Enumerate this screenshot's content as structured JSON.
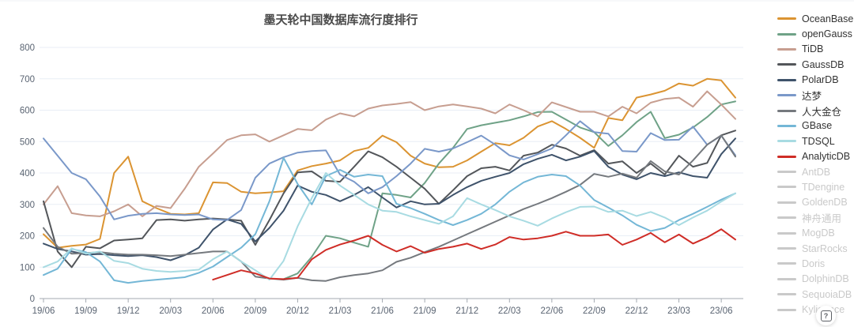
{
  "title": "墨天轮中国数据库流行度排行",
  "help": {
    "glyph": "?"
  },
  "colors": {
    "title": "#4a4a4a",
    "grid": "#e8eef6",
    "axis_line": "#a3a9b1",
    "tick_label": "#5a6472",
    "inactive_legend": "#c9c9c9",
    "background": "#ffffff"
  },
  "legend": {
    "position": "right",
    "items": [
      {
        "label": "OceanBase",
        "color": "#db9432",
        "active": true
      },
      {
        "label": "openGauss",
        "color": "#6fa287",
        "active": true
      },
      {
        "label": "TiDB",
        "color": "#c79e90",
        "active": true
      },
      {
        "label": "GaussDB",
        "color": "#53565a",
        "active": true
      },
      {
        "label": "PolarDB",
        "color": "#3f536b",
        "active": true
      },
      {
        "label": "达梦",
        "color": "#7a98c9",
        "active": true
      },
      {
        "label": "人大金仓",
        "color": "#75797e",
        "active": true
      },
      {
        "label": "GBase",
        "color": "#74b7d6",
        "active": true
      },
      {
        "label": "TDSQL",
        "color": "#a8dbe2",
        "active": true
      },
      {
        "label": "AnalyticDB",
        "color": "#cf2d27",
        "active": true
      },
      {
        "label": "AntDB",
        "color": "#cccccc",
        "active": false
      },
      {
        "label": "TDengine",
        "color": "#cccccc",
        "active": false
      },
      {
        "label": "GoldenDB",
        "color": "#cccccc",
        "active": false
      },
      {
        "label": "神舟通用",
        "color": "#cccccc",
        "active": false
      },
      {
        "label": "MogDB",
        "color": "#cccccc",
        "active": false
      },
      {
        "label": "StarRocks",
        "color": "#cccccc",
        "active": false
      },
      {
        "label": "Doris",
        "color": "#cccccc",
        "active": false
      },
      {
        "label": "DolphinDB",
        "color": "#cccccc",
        "active": false
      },
      {
        "label": "SequoiaDB",
        "color": "#cccccc",
        "active": false
      },
      {
        "label": "Kyligence",
        "color": "#cccccc",
        "active": false
      }
    ]
  },
  "chart_data": {
    "type": "line",
    "title": "墨天轮中国数据库流行度排行",
    "xlabel": "",
    "ylabel": "",
    "ylim": [
      0,
      800
    ],
    "y_tick_step": 100,
    "x_label_every": 3,
    "grid": true,
    "legend_position": "right",
    "x": [
      "19/06",
      "19/07",
      "19/08",
      "19/09",
      "19/10",
      "19/11",
      "19/12",
      "20/01",
      "20/02",
      "20/03",
      "20/04",
      "20/05",
      "20/06",
      "20/07",
      "20/08",
      "20/09",
      "20/10",
      "20/11",
      "20/12",
      "21/01",
      "21/02",
      "21/03",
      "21/04",
      "21/05",
      "21/06",
      "21/07",
      "21/08",
      "21/09",
      "21/10",
      "21/11",
      "21/12",
      "22/01",
      "22/02",
      "22/03",
      "22/04",
      "22/05",
      "22/06",
      "22/07",
      "22/08",
      "22/09",
      "22/10",
      "22/11",
      "22/12",
      "23/01",
      "23/02",
      "23/03",
      "23/04",
      "23/05",
      "23/06",
      "23/07"
    ],
    "series": [
      {
        "name": "OceanBase",
        "color": "#db9432",
        "values": [
          205,
          162,
          168,
          172,
          190,
          400,
          452,
          310,
          288,
          270,
          268,
          272,
          370,
          368,
          340,
          335,
          338,
          342,
          408,
          422,
          430,
          440,
          470,
          480,
          519,
          498,
          455,
          430,
          418,
          420,
          440,
          468,
          495,
          488,
          512,
          548,
          565,
          540,
          512,
          480,
          575,
          568,
          640,
          650,
          662,
          685,
          678,
          700,
          695,
          640
        ]
      },
      {
        "name": "openGauss",
        "color": "#6fa287",
        "values": [
          null,
          null,
          null,
          null,
          null,
          null,
          null,
          null,
          null,
          null,
          null,
          null,
          null,
          null,
          null,
          null,
          null,
          62,
          80,
          133,
          200,
          192,
          178,
          165,
          335,
          330,
          322,
          368,
          430,
          480,
          540,
          552,
          560,
          568,
          580,
          594,
          595,
          570,
          545,
          530,
          486,
          520,
          562,
          595,
          511,
          522,
          545,
          578,
          618,
          628
        ]
      },
      {
        "name": "TiDB",
        "color": "#c79e90",
        "values": [
          300,
          358,
          272,
          265,
          262,
          278,
          300,
          262,
          295,
          288,
          350,
          420,
          462,
          505,
          520,
          523,
          500,
          520,
          540,
          536,
          570,
          590,
          580,
          605,
          615,
          620,
          626,
          600,
          612,
          618,
          612,
          605,
          590,
          618,
          600,
          580,
          625,
          610,
          595,
          595,
          580,
          611,
          590,
          624,
          636,
          640,
          611,
          660,
          618,
          572
        ]
      },
      {
        "name": "GaussDB",
        "color": "#53565a",
        "values": [
          310,
          150,
          100,
          165,
          160,
          185,
          188,
          192,
          250,
          252,
          248,
          252,
          255,
          252,
          248,
          171,
          250,
          335,
          402,
          405,
          375,
          372,
          420,
          469,
          450,
          420,
          385,
          350,
          302,
          345,
          390,
          415,
          420,
          408,
          455,
          465,
          490,
          478,
          455,
          473,
          430,
          437,
          400,
          430,
          395,
          455,
          420,
          432,
          520,
          535
        ]
      },
      {
        "name": "PolarDB",
        "color": "#3f536b",
        "values": [
          175,
          158,
          150,
          140,
          142,
          138,
          135,
          138,
          132,
          122,
          138,
          162,
          220,
          252,
          238,
          182,
          225,
          280,
          360,
          340,
          330,
          310,
          330,
          355,
          322,
          290,
          310,
          300,
          302,
          330,
          355,
          375,
          388,
          400,
          428,
          445,
          458,
          440,
          452,
          470,
          420,
          395,
          380,
          400,
          390,
          402,
          390,
          385,
          460,
          510
        ]
      },
      {
        "name": "达梦",
        "color": "#7a98c9",
        "values": [
          510,
          455,
          400,
          380,
          325,
          252,
          264,
          270,
          272,
          268,
          266,
          268,
          252,
          250,
          282,
          385,
          430,
          450,
          465,
          470,
          472,
          395,
          372,
          335,
          355,
          390,
          430,
          477,
          468,
          478,
          498,
          519,
          490,
          456,
          443,
          460,
          478,
          520,
          565,
          530,
          525,
          470,
          468,
          527,
          505,
          506,
          548,
          490,
          519,
          456
        ]
      },
      {
        "name": "人大金仓",
        "color": "#75797e",
        "values": [
          225,
          165,
          143,
          145,
          148,
          143,
          140,
          140,
          138,
          135,
          140,
          145,
          150,
          150,
          118,
          70,
          64,
          60,
          66,
          58,
          56,
          68,
          75,
          80,
          90,
          117,
          130,
          148,
          165,
          185,
          205,
          225,
          245,
          265,
          285,
          302,
          320,
          340,
          362,
          397,
          388,
          398,
          385,
          438,
          405,
          395,
          440,
          490,
          520,
          452
        ]
      },
      {
        "name": "GBase",
        "color": "#74b7d6",
        "values": [
          75,
          95,
          158,
          148,
          118,
          58,
          50,
          56,
          60,
          64,
          68,
          82,
          102,
          132,
          162,
          205,
          310,
          448,
          365,
          300,
          390,
          410,
          388,
          395,
          390,
          302,
          288,
          270,
          250,
          234,
          250,
          270,
          300,
          340,
          370,
          388,
          395,
          390,
          360,
          314,
          290,
          265,
          235,
          215,
          225,
          250,
          270,
          292,
          315,
          335
        ]
      },
      {
        "name": "TDSQL",
        "color": "#a8dbe2",
        "values": [
          100,
          118,
          160,
          143,
          150,
          120,
          113,
          95,
          88,
          85,
          88,
          92,
          125,
          150,
          118,
          90,
          60,
          120,
          230,
          320,
          400,
          360,
          330,
          300,
          280,
          276,
          262,
          250,
          238,
          262,
          320,
          300,
          282,
          262,
          248,
          232,
          255,
          275,
          292,
          293,
          276,
          280,
          263,
          276,
          258,
          234,
          258,
          280,
          309,
          335
        ]
      },
      {
        "name": "AnalyticDB",
        "color": "#cf2d27",
        "values": [
          null,
          null,
          null,
          null,
          null,
          null,
          null,
          null,
          null,
          null,
          null,
          null,
          60,
          75,
          90,
          80,
          64,
          62,
          66,
          125,
          155,
          172,
          185,
          200,
          171,
          150,
          167,
          146,
          158,
          165,
          175,
          158,
          172,
          196,
          188,
          192,
          200,
          213,
          200,
          200,
          204,
          171,
          188,
          209,
          179,
          204,
          175,
          195,
          221,
          188
        ]
      }
    ]
  }
}
